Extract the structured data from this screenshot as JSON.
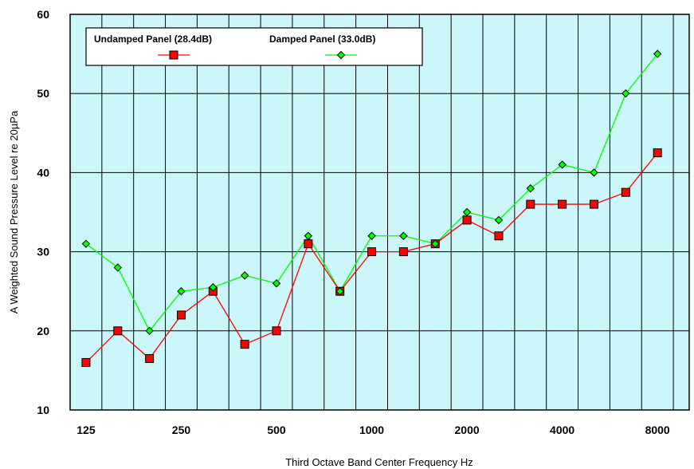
{
  "chart_data": {
    "type": "line",
    "title": "",
    "xlabel": "Third Octave Band Center Frequency Hz",
    "ylabel": "A Weighted Sound Pressure Level re 20µPa",
    "ylim": [
      10,
      60
    ],
    "yticks": [
      10,
      20,
      30,
      40,
      50,
      60
    ],
    "grid": true,
    "legend": "top-left",
    "x": [
      125,
      160,
      200,
      250,
      315,
      400,
      500,
      630,
      800,
      1000,
      1250,
      1600,
      2000,
      2500,
      3150,
      4000,
      5000,
      6300,
      8000
    ],
    "x_tick_labels": [
      "125",
      "",
      "",
      "250",
      "",
      "",
      "500",
      "",
      "",
      "1000",
      "",
      "",
      "2000",
      "",
      "",
      "4000",
      "",
      "",
      "8000"
    ],
    "series": [
      {
        "name": "Undamped Panel (28.4dB)",
        "color": "#ff0000",
        "marker": "square",
        "values": [
          16,
          20,
          16.5,
          22,
          25,
          18.3,
          20,
          31,
          25,
          30,
          30,
          31,
          34,
          32,
          36,
          36,
          36,
          37.5,
          42.5
        ]
      },
      {
        "name": "Damped Panel (33.0dB)",
        "color": "#00ff00",
        "marker": "diamond",
        "values": [
          31,
          28,
          20,
          25,
          25.5,
          27,
          26,
          32,
          25,
          32,
          32,
          31,
          35,
          34,
          38,
          41,
          40,
          50,
          55
        ]
      }
    ],
    "plot_background": "#ccf7fa"
  }
}
